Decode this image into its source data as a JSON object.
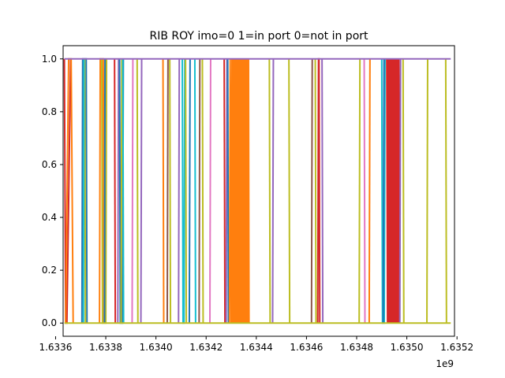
{
  "chart_data": {
    "type": "line",
    "title": "RIB ROY imo=0 1=in port 0=not in port",
    "xlabel": "",
    "ylabel": "",
    "x_scale_label": "1e9",
    "xlim": [
      1.63363,
      1.63519
    ],
    "ylim": [
      -0.05,
      1.05
    ],
    "x_ticks": [
      1.6336,
      1.6338,
      1.634,
      1.6342,
      1.6344,
      1.6346,
      1.6348,
      1.635,
      1.6352
    ],
    "x_tick_labels": [
      "1.6336",
      "1.6338",
      "1.6340",
      "1.6342",
      "1.6344",
      "1.6346",
      "1.6348",
      "1.6350",
      "1.6352"
    ],
    "y_ticks": [
      0.0,
      0.2,
      0.4,
      0.6,
      0.8,
      1.0
    ],
    "y_tick_labels": [
      "0.0",
      "0.2",
      "0.4",
      "0.6",
      "0.8",
      "1.0"
    ],
    "grid": false,
    "legend": "none",
    "series": [
      {
        "color": "#d62728",
        "x": [
          1.633635,
          1.63364,
          1.633645,
          1.63366
        ],
        "y": [
          1,
          0,
          0,
          1
        ]
      },
      {
        "color": "#ff7f0e",
        "x": [
          1.63364,
          1.633652,
          1.633662,
          1.63367
        ],
        "y": [
          0,
          1,
          1,
          0
        ]
      },
      {
        "color": "#1f77b4",
        "x": [
          1.633705,
          1.633708,
          1.633722,
          1.633725
        ],
        "y": [
          0,
          1,
          1,
          0
        ]
      },
      {
        "color": "#bcbd22",
        "x": [
          1.633716,
          1.633719
        ],
        "y": [
          1,
          0
        ]
      },
      {
        "color": "#17becf",
        "x": [
          1.633711,
          1.633713
        ],
        "y": [
          0,
          1
        ]
      },
      {
        "color": "#ff7f0e",
        "x": [
          1.633775,
          1.633778,
          1.63379,
          1.633793
        ],
        "y": [
          0,
          1,
          1,
          0
        ]
      },
      {
        "color": "#bcbd22",
        "x": [
          1.633784,
          1.633787,
          1.6338,
          1.633803
        ],
        "y": [
          1,
          0,
          0,
          1
        ]
      },
      {
        "color": "#1f77b4",
        "x": [
          1.633795,
          1.633797
        ],
        "y": [
          0,
          1
        ]
      },
      {
        "color": "#d62728",
        "x": [
          1.633835,
          1.633838
        ],
        "y": [
          1,
          0
        ]
      },
      {
        "color": "#9467bd",
        "x": [
          1.633848,
          1.633851
        ],
        "y": [
          0,
          1
        ]
      },
      {
        "color": "#1f77b4",
        "x": [
          1.633855,
          1.633858,
          1.633867,
          1.63387
        ],
        "y": [
          1,
          0,
          0,
          1
        ]
      },
      {
        "color": "#bcbd22",
        "x": [
          1.633861,
          1.633864
        ],
        "y": [
          0,
          1
        ]
      },
      {
        "color": "#17becf",
        "x": [
          1.633868,
          1.633871
        ],
        "y": [
          1,
          0
        ]
      },
      {
        "color": "#e377c2",
        "x": [
          1.633905,
          1.633908
        ],
        "y": [
          0,
          1
        ]
      },
      {
        "color": "#bcbd22",
        "x": [
          1.633925,
          1.633928
        ],
        "y": [
          1,
          0
        ]
      },
      {
        "color": "#9467bd",
        "x": [
          1.63394,
          1.633943
        ],
        "y": [
          0,
          1
        ]
      },
      {
        "color": "#ff7f0e",
        "x": [
          1.634028,
          1.634031
        ],
        "y": [
          1,
          0
        ]
      },
      {
        "color": "#8c564b",
        "x": [
          1.634045,
          1.634048
        ],
        "y": [
          0,
          1
        ]
      },
      {
        "color": "#bcbd22",
        "x": [
          1.634055,
          1.634058
        ],
        "y": [
          1,
          0
        ]
      },
      {
        "color": "#9467bd",
        "x": [
          1.63409,
          1.634093
        ],
        "y": [
          0,
          1
        ]
      },
      {
        "color": "#17becf",
        "x": [
          1.634105,
          1.634108,
          1.634112,
          1.634115
        ],
        "y": [
          1,
          0,
          0,
          1
        ]
      },
      {
        "color": "#bcbd22",
        "x": [
          1.634118,
          1.634121
        ],
        "y": [
          1,
          0
        ]
      },
      {
        "color": "#1f77b4",
        "x": [
          1.634133,
          1.634136
        ],
        "y": [
          0,
          1
        ]
      },
      {
        "color": "#17becf",
        "x": [
          1.634155,
          1.634158
        ],
        "y": [
          1,
          0
        ]
      },
      {
        "color": "#8c564b",
        "x": [
          1.634172,
          1.634175
        ],
        "y": [
          0,
          1
        ]
      },
      {
        "color": "#bcbd22",
        "x": [
          1.634185,
          1.634188
        ],
        "y": [
          1,
          0
        ]
      },
      {
        "color": "#e377c2",
        "x": [
          1.634215,
          1.634218
        ],
        "y": [
          0,
          1
        ]
      },
      {
        "color": "#d62728",
        "x": [
          1.634272,
          1.634275
        ],
        "y": [
          1,
          0
        ]
      },
      {
        "color": "#9467bd",
        "x": [
          1.63428,
          1.634283
        ],
        "y": [
          0,
          1
        ]
      },
      {
        "color": "#1f77b4",
        "x": [
          1.634286,
          1.634289
        ],
        "y": [
          1,
          0
        ]
      },
      {
        "color": "#ff7f0e",
        "x": [
          1.634293,
          1.634296,
          1.6343,
          1.634303,
          1.634306,
          1.634309,
          1.634312,
          1.634315,
          1.634318,
          1.634321,
          1.634324,
          1.634327,
          1.63433,
          1.634333,
          1.634336,
          1.634339,
          1.634342,
          1.634345,
          1.634348,
          1.634351,
          1.634354,
          1.634357,
          1.63436,
          1.634363,
          1.634366,
          1.634369,
          1.634371
        ],
        "y": [
          0,
          1,
          0,
          1,
          0,
          1,
          0,
          1,
          0,
          1,
          0,
          1,
          0,
          1,
          0,
          1,
          0,
          1,
          0,
          1,
          0,
          1,
          0,
          1,
          0,
          1,
          0
        ]
      },
      {
        "color": "#bcbd22",
        "x": [
          1.634452,
          1.634455
        ],
        "y": [
          1,
          0
        ]
      },
      {
        "color": "#9467bd",
        "x": [
          1.634465,
          1.634468
        ],
        "y": [
          0,
          1
        ]
      },
      {
        "color": "#bcbd22",
        "x": [
          1.63453,
          1.634533
        ],
        "y": [
          1,
          0
        ]
      },
      {
        "color": "#8c564b",
        "x": [
          1.63462,
          1.634623
        ],
        "y": [
          0,
          1
        ]
      },
      {
        "color": "#bcbd22",
        "x": [
          1.634635,
          1.634638
        ],
        "y": [
          1,
          0
        ]
      },
      {
        "color": "#d62728",
        "x": [
          1.634645,
          1.634648,
          1.63465,
          1.634653
        ],
        "y": [
          0,
          1,
          1,
          0
        ]
      },
      {
        "color": "#9467bd",
        "x": [
          1.634662,
          1.634665
        ],
        "y": [
          1,
          0
        ]
      },
      {
        "color": "#bcbd22",
        "x": [
          1.63481,
          1.634813
        ],
        "y": [
          0,
          1
        ]
      },
      {
        "color": "#e377c2",
        "x": [
          1.63483,
          1.634833
        ],
        "y": [
          1,
          0
        ]
      },
      {
        "color": "#ff7f0e",
        "x": [
          1.63485,
          1.634853
        ],
        "y": [
          0,
          1
        ]
      },
      {
        "color": "#17becf",
        "x": [
          1.6349,
          1.634903,
          1.63491,
          1.634913
        ],
        "y": [
          1,
          0,
          0,
          1
        ]
      },
      {
        "color": "#1f77b4",
        "x": [
          1.634906,
          1.634909
        ],
        "y": [
          0,
          1
        ]
      },
      {
        "color": "#d62728",
        "x": [
          1.63492,
          1.634923,
          1.634926,
          1.634929,
          1.634932,
          1.634935,
          1.634938,
          1.634941,
          1.634944,
          1.634947,
          1.63495,
          1.634953,
          1.634956,
          1.634959,
          1.634962,
          1.634965,
          1.634968,
          1.634971
        ],
        "y": [
          1,
          0,
          1,
          0,
          1,
          0,
          1,
          0,
          1,
          0,
          1,
          0,
          1,
          0,
          1,
          0,
          1,
          0
        ]
      },
      {
        "color": "#9467bd",
        "x": [
          1.634972,
          1.634975
        ],
        "y": [
          0,
          1
        ]
      },
      {
        "color": "#bcbd22",
        "x": [
          1.634985,
          1.634988
        ],
        "y": [
          1,
          0
        ]
      },
      {
        "color": "#bcbd22",
        "x": [
          1.63508,
          1.635083
        ],
        "y": [
          0,
          1
        ]
      },
      {
        "color": "#bcbd22",
        "x": [
          1.635155,
          1.635158
        ],
        "y": [
          1,
          0
        ]
      },
      {
        "color": "#9467bd",
        "x": [
          1.633635,
          1.635175
        ],
        "y": [
          1,
          1
        ]
      },
      {
        "color": "#bcbd22",
        "x": [
          1.633635,
          1.635175
        ],
        "y": [
          0,
          0
        ]
      }
    ]
  }
}
